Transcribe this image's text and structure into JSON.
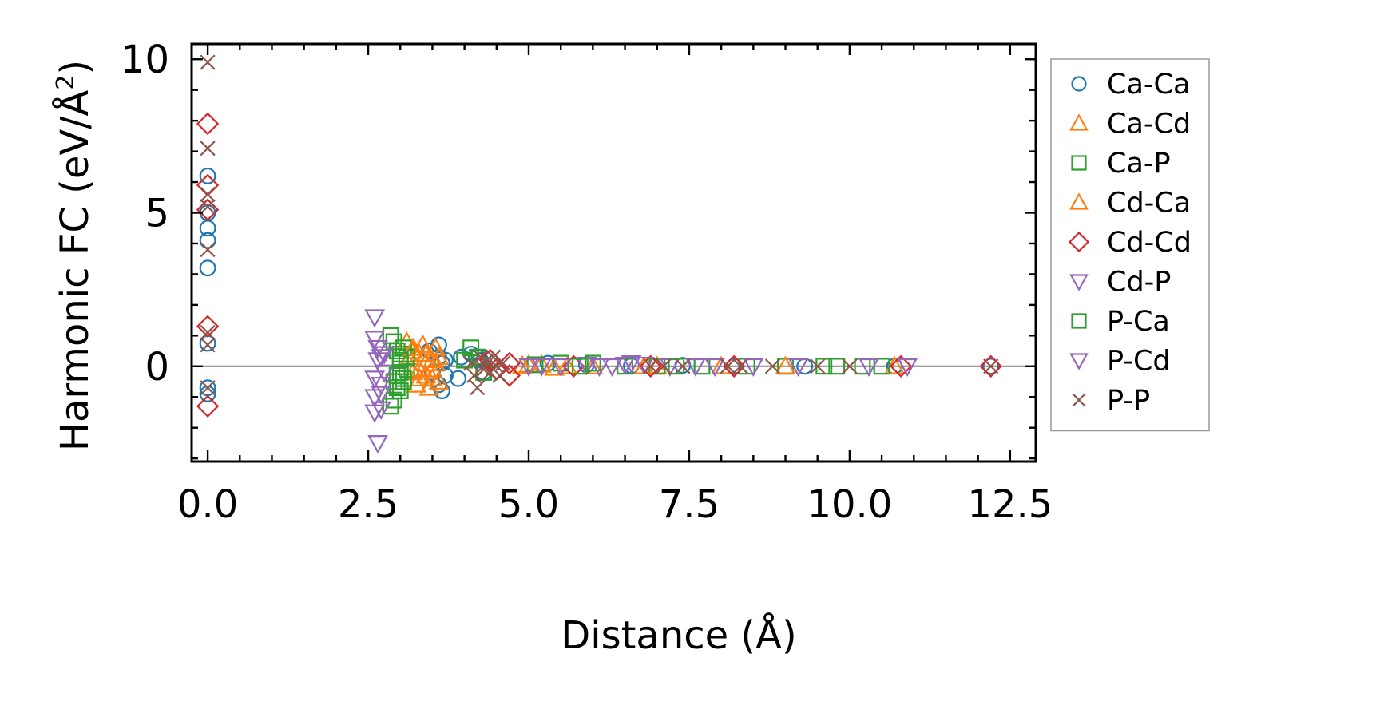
{
  "chart_data": {
    "type": "scatter",
    "title": "",
    "xlabel": "Distance (Å)",
    "ylabel_main": "Harmonic FC (eV/Å",
    "ylabel_sup": "2",
    "ylabel_close": ")",
    "xlim": [
      -0.25,
      12.9
    ],
    "ylim": [
      -3.1,
      10.5
    ],
    "xticks": [
      0.0,
      2.5,
      5.0,
      7.5,
      10.0,
      12.5
    ],
    "xtick_labels": [
      "0.0",
      "2.5",
      "5.0",
      "7.5",
      "10.0",
      "12.5"
    ],
    "yticks": [
      0,
      5,
      10
    ],
    "ytick_labels": [
      "0",
      "5",
      "10"
    ],
    "zero_line": true,
    "legend_position": "right",
    "series": [
      {
        "name": "Ca-Ca",
        "marker": "circle",
        "color": "#1f77b4",
        "points": [
          [
            0,
            6.2
          ],
          [
            0,
            5.0
          ],
          [
            0,
            4.5
          ],
          [
            0,
            4.1
          ],
          [
            0,
            3.2
          ],
          [
            0,
            0.75
          ],
          [
            0,
            -0.7
          ],
          [
            0,
            -0.9
          ],
          [
            3.45,
            0.5
          ],
          [
            3.5,
            -0.2
          ],
          [
            3.6,
            0.3
          ],
          [
            3.6,
            -0.6
          ],
          [
            3.6,
            0.7
          ],
          [
            3.65,
            -0.8
          ],
          [
            3.65,
            0.1
          ],
          [
            3.7,
            0.2
          ],
          [
            3.7,
            -0.3
          ],
          [
            3.9,
            -0.4
          ],
          [
            3.95,
            0.3
          ],
          [
            4.1,
            0.4
          ],
          [
            4.2,
            0.3
          ],
          [
            4.25,
            0.2
          ],
          [
            4.3,
            -0.2
          ],
          [
            5.3,
            0.1
          ],
          [
            5.9,
            0.05
          ],
          [
            6.6,
            0.02
          ],
          [
            7.4,
            0.03
          ],
          [
            8.2,
            0.0
          ],
          [
            9.3,
            0.0
          ],
          [
            10.7,
            0.0
          ],
          [
            12.2,
            0.0
          ]
        ]
      },
      {
        "name": "Ca-Cd",
        "marker": "triangle-up",
        "color": "#ff7f0e",
        "points": [
          [
            3.1,
            0.8
          ],
          [
            3.15,
            0.3
          ],
          [
            3.2,
            -0.2
          ],
          [
            3.2,
            0.5
          ],
          [
            3.25,
            -0.6
          ],
          [
            3.3,
            0.4
          ],
          [
            3.3,
            -0.4
          ],
          [
            3.35,
            0.7
          ],
          [
            3.4,
            0.1
          ],
          [
            3.4,
            -0.3
          ],
          [
            3.45,
            -0.7
          ],
          [
            3.5,
            0.2
          ],
          [
            3.5,
            -0.1
          ],
          [
            3.55,
            0.6
          ],
          [
            3.6,
            0.3
          ],
          [
            3.6,
            -0.5
          ],
          [
            5.0,
            0.05
          ],
          [
            5.2,
            0.05
          ],
          [
            5.4,
            -0.05
          ],
          [
            6.0,
            0.0
          ],
          [
            7.0,
            0.0
          ],
          [
            8.0,
            0.0
          ],
          [
            10.7,
            0.0
          ]
        ]
      },
      {
        "name": "Ca-P",
        "marker": "square",
        "color": "#2ca02c",
        "points": [
          [
            2.85,
            1.0
          ],
          [
            2.85,
            -1.3
          ],
          [
            2.9,
            0.8
          ],
          [
            2.9,
            -0.5
          ],
          [
            2.9,
            -1.1
          ],
          [
            2.95,
            0.5
          ],
          [
            2.95,
            -0.3
          ],
          [
            3.0,
            0.4
          ],
          [
            3.0,
            0.1
          ],
          [
            3.0,
            -0.2
          ],
          [
            3.0,
            -0.8
          ],
          [
            3.05,
            0.6
          ],
          [
            3.05,
            -0.5
          ],
          [
            3.1,
            0.3
          ],
          [
            3.1,
            -0.1
          ],
          [
            4.1,
            0.6
          ],
          [
            4.2,
            0.3
          ],
          [
            4.3,
            -0.2
          ],
          [
            5.1,
            0.05
          ],
          [
            5.5,
            0.1
          ],
          [
            6.0,
            0.1
          ],
          [
            6.5,
            0.0
          ],
          [
            7.0,
            0.0
          ],
          [
            7.7,
            0.0
          ],
          [
            8.4,
            0.0
          ],
          [
            9.0,
            0.0
          ],
          [
            9.6,
            0.0
          ],
          [
            10.2,
            0.0
          ],
          [
            10.5,
            0.0
          ]
        ]
      },
      {
        "name": "Cd-Ca",
        "marker": "triangle-up",
        "color": "#ff7f0e",
        "points": [
          [
            3.2,
            0.6
          ],
          [
            3.3,
            -0.1
          ],
          [
            3.4,
            0.4
          ],
          [
            3.5,
            -0.4
          ],
          [
            3.55,
            0.1
          ],
          [
            4.9,
            0.02
          ],
          [
            5.6,
            0.0
          ],
          [
            6.8,
            0.0
          ],
          [
            9.0,
            0.0
          ]
        ]
      },
      {
        "name": "Cd-Cd",
        "marker": "diamond",
        "color": "#d62728",
        "points": [
          [
            0,
            7.9
          ],
          [
            0,
            5.9
          ],
          [
            0,
            5.1
          ],
          [
            0,
            1.3
          ],
          [
            0,
            -1.3
          ],
          [
            4.4,
            0.2
          ],
          [
            4.5,
            -0.1
          ],
          [
            4.7,
            0.1
          ],
          [
            4.7,
            -0.3
          ],
          [
            5.7,
            0.0
          ],
          [
            6.9,
            0.0
          ],
          [
            8.2,
            0.0
          ],
          [
            10.8,
            0.0
          ],
          [
            12.2,
            0.0
          ]
        ]
      },
      {
        "name": "Cd-P",
        "marker": "triangle-down",
        "color": "#9467bd",
        "points": [
          [
            2.6,
            1.6
          ],
          [
            2.6,
            0.9
          ],
          [
            2.6,
            -0.4
          ],
          [
            2.6,
            -1.0
          ],
          [
            2.6,
            -1.5
          ],
          [
            2.65,
            0.6
          ],
          [
            2.65,
            -2.5
          ],
          [
            2.7,
            0.3
          ],
          [
            2.7,
            -0.6
          ],
          [
            2.7,
            -1.4
          ],
          [
            2.75,
            -0.2
          ],
          [
            5.0,
            0.0
          ],
          [
            5.5,
            0.0
          ],
          [
            5.9,
            0.05
          ],
          [
            6.1,
            0.0
          ],
          [
            6.5,
            0.05
          ],
          [
            6.6,
            0.1
          ],
          [
            6.8,
            0.05
          ],
          [
            7.2,
            0.0
          ],
          [
            7.9,
            0.0
          ],
          [
            8.5,
            0.0
          ],
          [
            9.2,
            0.0
          ],
          [
            10.3,
            0.0
          ]
        ]
      },
      {
        "name": "P-Ca",
        "marker": "square",
        "color": "#2ca02c",
        "points": [
          [
            2.95,
            -0.7
          ],
          [
            3.0,
            0.2
          ],
          [
            3.05,
            -0.4
          ],
          [
            4.0,
            0.2
          ],
          [
            5.8,
            0.0
          ],
          [
            7.3,
            0.0
          ],
          [
            9.8,
            0.0
          ]
        ]
      },
      {
        "name": "P-Cd",
        "marker": "triangle-down",
        "color": "#9467bd",
        "points": [
          [
            2.65,
            0.2
          ],
          [
            2.7,
            -0.9
          ],
          [
            2.75,
            0.4
          ],
          [
            5.2,
            0.0
          ],
          [
            6.3,
            0.0
          ],
          [
            7.6,
            0.0
          ],
          [
            10.9,
            0.0
          ]
        ]
      },
      {
        "name": "P-P",
        "marker": "x",
        "color": "#8c564b",
        "points": [
          [
            0,
            9.9
          ],
          [
            0,
            7.1
          ],
          [
            0,
            5.6
          ],
          [
            0,
            5.2
          ],
          [
            0,
            3.8
          ],
          [
            0,
            1.1
          ],
          [
            0,
            0.7
          ],
          [
            0,
            -0.7
          ],
          [
            4.1,
            0.1
          ],
          [
            4.15,
            -0.3
          ],
          [
            4.2,
            -0.7
          ],
          [
            4.25,
            0.3
          ],
          [
            4.3,
            -0.1
          ],
          [
            4.35,
            0.2
          ],
          [
            4.4,
            -0.2
          ],
          [
            4.45,
            0.3
          ],
          [
            4.5,
            0.0
          ],
          [
            4.55,
            -0.3
          ],
          [
            4.6,
            0.1
          ],
          [
            6.9,
            0.0
          ],
          [
            7.1,
            0.0
          ],
          [
            7.4,
            0.0
          ],
          [
            8.1,
            0.0
          ],
          [
            8.3,
            0.0
          ],
          [
            8.8,
            0.0
          ],
          [
            9.5,
            0.0
          ],
          [
            10.0,
            0.0
          ],
          [
            12.2,
            0.0
          ]
        ]
      }
    ]
  }
}
